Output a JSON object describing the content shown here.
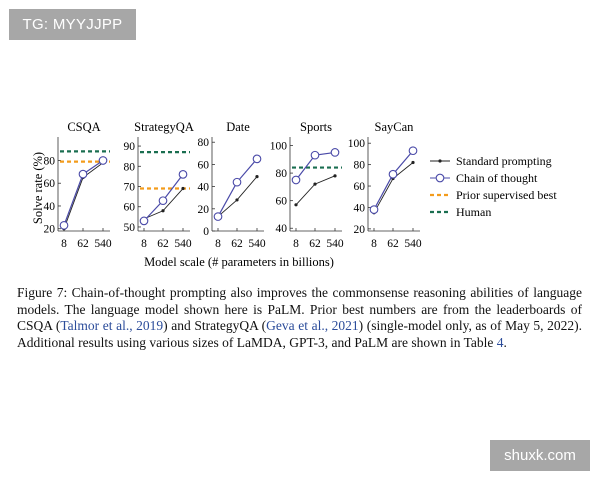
{
  "badges": {
    "top": "TG: MYYJJPP",
    "bottom": "shuxk.com"
  },
  "figure": {
    "y_axis_label": "Solve rate (%)",
    "x_axis_label": "Model scale (# parameters in billions)",
    "legend": [
      {
        "label": "Standard prompting",
        "style": "line-dot",
        "color": "#222222"
      },
      {
        "label": "Chain of thought",
        "style": "line-circle",
        "color": "#4a4aa8"
      },
      {
        "label": "Prior supervised best",
        "style": "dashed",
        "color": "#f39c1c"
      },
      {
        "label": "Human",
        "style": "dashed",
        "color": "#1a6e50"
      }
    ]
  },
  "chart_data": [
    {
      "type": "line",
      "title": "CSQA",
      "x_ticks": [
        "8",
        "62",
        "540"
      ],
      "ylim": [
        18,
        98
      ],
      "y_ticks": [
        20,
        40,
        60,
        80
      ],
      "series": [
        {
          "name": "Standard prompting",
          "values": [
            20,
            65,
            78
          ]
        },
        {
          "name": "Chain of thought",
          "values": [
            23,
            68,
            80
          ]
        }
      ],
      "prior_best": 79,
      "human": 88
    },
    {
      "type": "line",
      "title": "StrategyQA",
      "x_ticks": [
        "8",
        "62",
        "540"
      ],
      "ylim": [
        48,
        93
      ],
      "y_ticks": [
        50,
        60,
        70,
        80,
        90
      ],
      "series": [
        {
          "name": "Standard prompting",
          "values": [
            54,
            58,
            69
          ]
        },
        {
          "name": "Chain of thought",
          "values": [
            53,
            63,
            76
          ]
        }
      ],
      "prior_best": 69,
      "human": 87
    },
    {
      "type": "line",
      "title": "Date",
      "x_ticks": [
        "8",
        "62",
        "540"
      ],
      "ylim": [
        0,
        82
      ],
      "y_ticks": [
        0,
        20,
        40,
        60,
        80
      ],
      "series": [
        {
          "name": "Standard prompting",
          "values": [
            13,
            28,
            49
          ]
        },
        {
          "name": "Chain of thought",
          "values": [
            13,
            44,
            65
          ]
        }
      ],
      "prior_best": null,
      "human": null
    },
    {
      "type": "line",
      "title": "Sports",
      "x_ticks": [
        "8",
        "62",
        "540"
      ],
      "ylim": [
        38,
        104
      ],
      "y_ticks": [
        40,
        60,
        80,
        100
      ],
      "series": [
        {
          "name": "Standard prompting",
          "values": [
            57,
            72,
            78
          ]
        },
        {
          "name": "Chain of thought",
          "values": [
            75,
            93,
            95
          ]
        }
      ],
      "prior_best": null,
      "human": 84
    },
    {
      "type": "line",
      "title": "SayCan",
      "x_ticks": [
        "8",
        "62",
        "540"
      ],
      "ylim": [
        18,
        103
      ],
      "y_ticks": [
        20,
        40,
        60,
        80,
        100
      ],
      "series": [
        {
          "name": "Standard prompting",
          "values": [
            35,
            67,
            82
          ]
        },
        {
          "name": "Chain of thought",
          "values": [
            38,
            71,
            93
          ]
        }
      ],
      "prior_best": null,
      "human": null
    }
  ],
  "caption": {
    "p1": "Figure 7:   Chain-of-thought prompting also improves the commonsense reasoning abilities of language models.  The language model shown here is PaLM. Prior best numbers are from the leaderboards of CSQA (",
    "cite1": "Talmor et al., 2019",
    "p2": ") and StrategyQA (",
    "cite2": "Geva et al., 2021",
    "p3": ") (single-model only, as of May 5, 2022). Additional results using various sizes of LaMDA, GPT-3, and PaLM are shown in Table ",
    "cite3": "4",
    "p4": "."
  }
}
